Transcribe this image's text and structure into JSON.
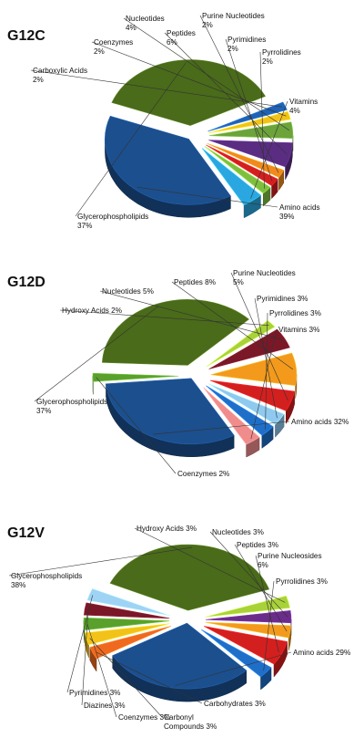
{
  "chart_data": [
    {
      "type": "pie",
      "title": "G12C",
      "slices": [
        {
          "label": "Amino acids",
          "pct_text": "39%",
          "value": 39,
          "color": "#1c4f8e"
        },
        {
          "label": "Glycerophospholipids",
          "pct_text": "37%",
          "value": 37,
          "color": "#4a6b1a"
        },
        {
          "label": "Carboxylic Acids",
          "pct_text": "2%",
          "value": 2,
          "color": "#1f63b5"
        },
        {
          "label": "Coenzymes",
          "pct_text": "2%",
          "value": 2,
          "color": "#f2c21b"
        },
        {
          "label": "Nucleotides",
          "pct_text": "4%",
          "value": 4,
          "color": "#6ca33a"
        },
        {
          "label": "Peptides",
          "pct_text": "6%",
          "value": 6,
          "color": "#5a2d82"
        },
        {
          "label": "Purine Nucleotides",
          "pct_text": "2%",
          "value": 2,
          "color": "#f08a1c"
        },
        {
          "label": "Pyrimidines",
          "pct_text": "2%",
          "value": 2,
          "color": "#d41f1f"
        },
        {
          "label": "Pyrrolidines",
          "pct_text": "2%",
          "value": 2,
          "color": "#7fbf3f"
        },
        {
          "label": "Vitamins",
          "pct_text": "4%",
          "value": 4,
          "color": "#2aa7e0"
        }
      ]
    },
    {
      "type": "pie",
      "title": "G12D",
      "slices": [
        {
          "label": "Amino acids",
          "pct_text": "32%",
          "value": 32,
          "color": "#1c4f8e"
        },
        {
          "label": "Coenzymes",
          "pct_text": "2%",
          "value": 2,
          "color": "#5aa02c"
        },
        {
          "label": "Glycerophospholipids",
          "pct_text": "37%",
          "value": 37,
          "color": "#4a6b1a"
        },
        {
          "label": "Hydroxy Acids",
          "pct_text": "2%",
          "value": 2,
          "color": "#a9d13a"
        },
        {
          "label": "Nucleotides",
          "pct_text": "5%",
          "value": 5,
          "color": "#7a1828"
        },
        {
          "label": "Peptides",
          "pct_text": "8%",
          "value": 8,
          "color": "#f39a1c"
        },
        {
          "label": "Purine Nucleotides",
          "pct_text": "5%",
          "value": 5,
          "color": "#d41f1f"
        },
        {
          "label": "Pyrimidines",
          "pct_text": "3%",
          "value": 3,
          "color": "#8fc9ef"
        },
        {
          "label": "Pyrrolidines",
          "pct_text": "3%",
          "value": 3,
          "color": "#1f6fc9"
        },
        {
          "label": "Vitamins",
          "pct_text": "3%",
          "value": 3,
          "color": "#f08c8c"
        }
      ]
    },
    {
      "type": "pie",
      "title": "G12V",
      "slices": [
        {
          "label": "Amino acids",
          "pct_text": "29%",
          "value": 29,
          "color": "#1c4f8e"
        },
        {
          "label": "Carbohydrates",
          "pct_text": "3%",
          "value": 3,
          "color": "#ef6a1f"
        },
        {
          "label": "Carbonyl Compounds",
          "pct_text": "3%",
          "value": 3,
          "color": "#f2c21b"
        },
        {
          "label": "Coenzymes",
          "pct_text": "3%",
          "value": 3,
          "color": "#5aa02c"
        },
        {
          "label": "Diazines",
          "pct_text": "3%",
          "value": 3,
          "color": "#7a1828"
        },
        {
          "label": "Pyrimidines",
          "pct_text": "3%",
          "value": 3,
          "color": "#9fd3f5"
        },
        {
          "label": "Glycerophospholipids",
          "pct_text": "38%",
          "value": 38,
          "color": "#4a6b1a"
        },
        {
          "label": "Hydroxy Acids",
          "pct_text": "3%",
          "value": 3,
          "color": "#a9d13a"
        },
        {
          "label": "Nucleotides",
          "pct_text": "3%",
          "value": 3,
          "color": "#6a2d8a"
        },
        {
          "label": "Peptides",
          "pct_text": "3%",
          "value": 3,
          "color": "#f39a1c"
        },
        {
          "label": "Purine Nucleosides",
          "pct_text": "6%",
          "value": 6,
          "color": "#d41f1f"
        },
        {
          "label": "Pyrrolidines",
          "pct_text": "3%",
          "value": 3,
          "color": "#1f6fc9"
        }
      ]
    }
  ]
}
